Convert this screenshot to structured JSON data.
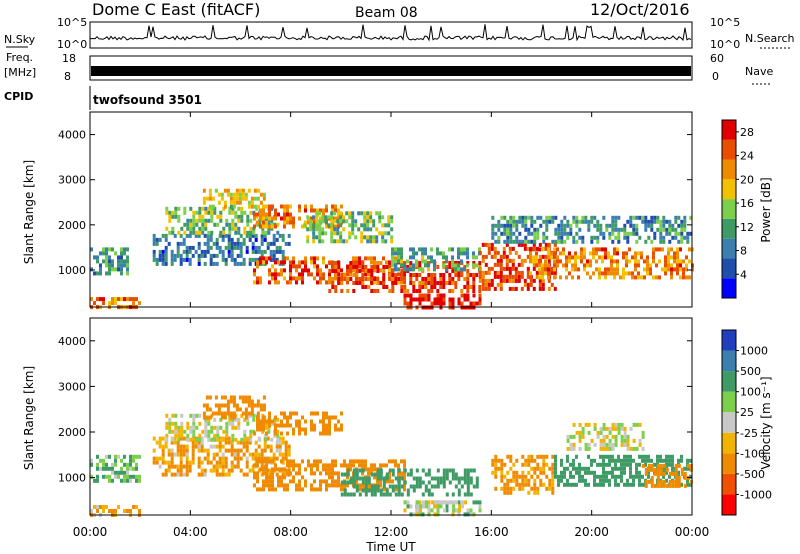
{
  "header": {
    "station": "Dome C East (fitACF)",
    "beam": "Beam 08",
    "date": "12/Oct/2016"
  },
  "strips": {
    "nsky_label": "N.Sky",
    "nsky_ticks": [
      "10^5",
      "10^0"
    ],
    "nsearch_label": "N.Search",
    "nsearch_ticks": [
      "10^5",
      "10^0"
    ],
    "freq_label": "Freq.",
    "freq_unit": "[MHz]",
    "freq_ticks": [
      "18",
      "8"
    ],
    "nave_label": "Nave",
    "nave_ticks": [
      "60",
      "0"
    ],
    "cpid_label": "CPID",
    "cpid_value": "twofsound 3501"
  },
  "colors": {
    "power": [
      "#0000ff",
      "#1f4faa",
      "#3a7fae",
      "#3f9b66",
      "#7ccf4a",
      "#f2c200",
      "#f08a00",
      "#e84d00",
      "#e00000"
    ],
    "velocity": [
      "#ff0000",
      "#f05000",
      "#f08a00",
      "#f2b400",
      "#c8c8c8",
      "#7ccf4a",
      "#3f9b66",
      "#3a7fae",
      "#1f3fbf"
    ]
  },
  "chart_data": [
    {
      "type": "heatmap",
      "panel": "power",
      "xlabel": "",
      "ylabel": "Slant Range [km]",
      "xlim": [
        0,
        24
      ],
      "ylim": [
        180,
        4500
      ],
      "x_ticks": [
        0,
        4,
        8,
        12,
        16,
        20,
        24
      ],
      "y_ticks": [
        1000,
        2000,
        3000,
        4000
      ],
      "colorbar_label": "Power [dB]",
      "colorbar_ticks": [
        "4",
        "8",
        "12",
        "16",
        "20",
        "24",
        "28"
      ],
      "colorbar_range": [
        0,
        30
      ],
      "regions": [
        {
          "t0": 0.0,
          "t1": 1.5,
          "r0": 900,
          "r1": 1500,
          "level": 10
        },
        {
          "t0": 0.0,
          "t1": 2.0,
          "r0": 180,
          "r1": 400,
          "level": 24
        },
        {
          "t0": 2.5,
          "t1": 8.0,
          "r0": 1100,
          "r1": 1800,
          "level": 8
        },
        {
          "t0": 3.0,
          "t1": 7.5,
          "r0": 1800,
          "r1": 2400,
          "level": 14
        },
        {
          "t0": 4.5,
          "t1": 7.0,
          "r0": 2400,
          "r1": 2800,
          "level": 18
        },
        {
          "t0": 6.5,
          "t1": 10.0,
          "r0": 2000,
          "r1": 2450,
          "level": 22
        },
        {
          "t0": 6.5,
          "t1": 12.5,
          "r0": 750,
          "r1": 1300,
          "level": 24
        },
        {
          "t0": 8.5,
          "t1": 12.0,
          "r0": 1600,
          "r1": 2300,
          "level": 14
        },
        {
          "t0": 9.5,
          "t1": 15.5,
          "r0": 500,
          "r1": 1200,
          "level": 26
        },
        {
          "t0": 12.0,
          "t1": 15.5,
          "r0": 1000,
          "r1": 1500,
          "level": 12
        },
        {
          "t0": 12.5,
          "t1": 15.5,
          "r0": 200,
          "r1": 480,
          "level": 28
        },
        {
          "t0": 15.5,
          "t1": 18.5,
          "r0": 600,
          "r1": 1600,
          "level": 26
        },
        {
          "t0": 17.5,
          "t1": 24.0,
          "r0": 800,
          "r1": 1500,
          "level": 22
        },
        {
          "t0": 16.0,
          "t1": 24.0,
          "r0": 1600,
          "r1": 2200,
          "level": 10
        }
      ]
    },
    {
      "type": "heatmap",
      "panel": "velocity",
      "xlabel": "Time UT",
      "ylabel": "Slant Range [km]",
      "xlim": [
        0,
        24
      ],
      "ylim": [
        180,
        4500
      ],
      "x_ticks": [
        0,
        4,
        8,
        12,
        16,
        20,
        24
      ],
      "x_tick_labels": [
        "00:00",
        "04:00",
        "08:00",
        "12:00",
        "16:00",
        "20:00",
        "00:00"
      ],
      "y_ticks": [
        1000,
        2000,
        3000,
        4000
      ],
      "colorbar_label": "Velocity [m s⁻¹]",
      "colorbar_ticks": [
        "1000",
        "500",
        "100",
        "25",
        "-25",
        "-100",
        "-500",
        "-1000"
      ],
      "regions": [
        {
          "t0": 0.0,
          "t1": 2.0,
          "r0": 900,
          "r1": 1500,
          "velocity": 100
        },
        {
          "t0": 0.0,
          "t1": 2.0,
          "r0": 180,
          "r1": 400,
          "velocity": -100
        },
        {
          "t0": 2.5,
          "t1": 8.0,
          "r0": 1100,
          "r1": 1900,
          "velocity": -100
        },
        {
          "t0": 3.0,
          "t1": 7.5,
          "r0": 1800,
          "r1": 2400,
          "velocity": 0
        },
        {
          "t0": 4.5,
          "t1": 7.0,
          "r0": 2300,
          "r1": 2800,
          "velocity": -300
        },
        {
          "t0": 6.5,
          "t1": 10.0,
          "r0": 2000,
          "r1": 2450,
          "velocity": -200
        },
        {
          "t0": 6.5,
          "t1": 12.5,
          "r0": 700,
          "r1": 1400,
          "velocity": -200
        },
        {
          "t0": 10.0,
          "t1": 15.5,
          "r0": 600,
          "r1": 1200,
          "velocity": 200
        },
        {
          "t0": 12.5,
          "t1": 15.5,
          "r0": 200,
          "r1": 500,
          "velocity": 50
        },
        {
          "t0": 13.0,
          "t1": 15.0,
          "r0": 300,
          "r1": 500,
          "velocity": 0
        },
        {
          "t0": 16.0,
          "t1": 18.5,
          "r0": 700,
          "r1": 1500,
          "velocity": -150
        },
        {
          "t0": 18.5,
          "t1": 24.0,
          "r0": 800,
          "r1": 1500,
          "velocity": 200
        },
        {
          "t0": 19.0,
          "t1": 22.0,
          "r0": 1600,
          "r1": 2200,
          "velocity": 0
        },
        {
          "t0": 22.0,
          "t1": 24.0,
          "r0": 800,
          "r1": 1300,
          "velocity": -300
        }
      ]
    }
  ]
}
